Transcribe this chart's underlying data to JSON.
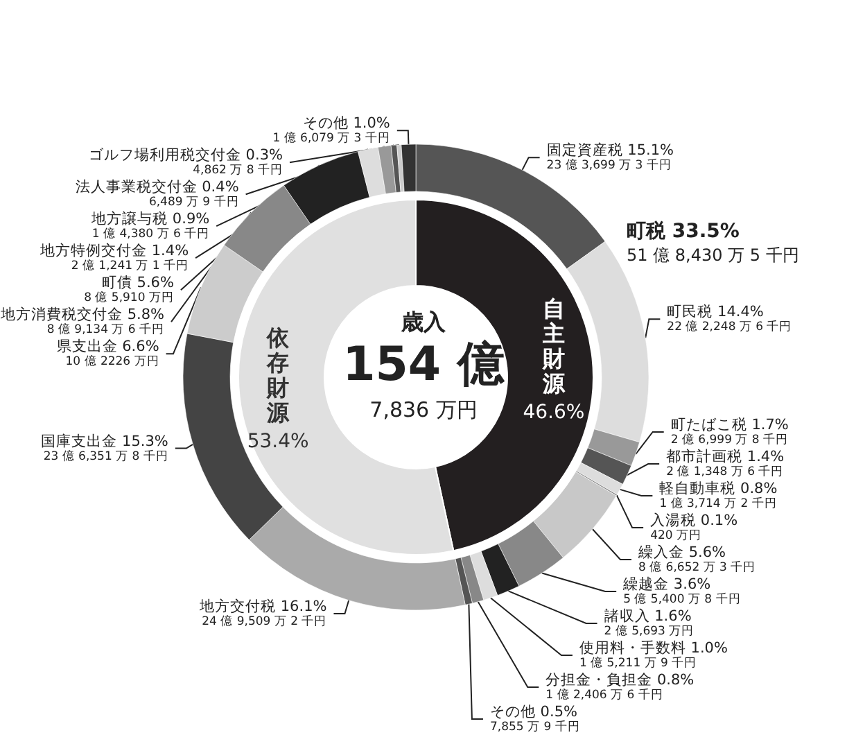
{
  "chart_data": [
    {
      "type": "donut",
      "title": "歳入",
      "annotations": [
        "154 億",
        "7,836 万円"
      ],
      "categories": [
        "自主財源",
        "依存財源"
      ],
      "values": [
        46.6,
        53.4
      ],
      "colors": [
        "#231f20",
        "#e0e0e0"
      ],
      "value_labels": [
        "46.6%",
        "53.4%"
      ]
    },
    {
      "type": "donut",
      "annotations": [
        "町税 33.5%",
        "51 億 8,430 万 5 千円"
      ],
      "categories": [
        "固定資産税",
        "町民税",
        "町たばこ税",
        "都市計画税",
        "軽自動車税",
        "入湯税",
        "繰入金",
        "繰越金",
        "諸収入",
        "使用料・手数料",
        "分担金・負担金",
        "その他",
        "地方交付税",
        "国庫支出金",
        "県支出金",
        "地方消費税交付金",
        "町債",
        "地方特例交付金",
        "地方譲与税",
        "法人事業税交付金",
        "ゴルフ場利用税交付金",
        "その他"
      ],
      "values": [
        15.1,
        14.4,
        1.7,
        1.4,
        0.8,
        0.1,
        5.6,
        3.6,
        1.6,
        1.0,
        0.8,
        0.5,
        16.1,
        15.3,
        6.6,
        5.8,
        5.6,
        1.4,
        0.9,
        0.4,
        0.3,
        1.0
      ],
      "colors": [
        "#555555",
        "#dddddd",
        "#999999",
        "#555555",
        "#dddddd",
        "#888888",
        "#c8c8c8",
        "#888888",
        "#222222",
        "#dddddd",
        "#888888",
        "#555555",
        "#aaaaaa",
        "#444444",
        "#cccccc",
        "#888888",
        "#222222",
        "#dddddd",
        "#999999",
        "#555555",
        "#cccccc",
        "#333333"
      ],
      "value_labels": [
        "15.1%\n23 億 3,699 万 3 千円",
        "14.4%\n22 億 2,248 万 6 千円",
        "1.7%\n2 億 6,999 万 8 千円",
        "1.4%\n2 億 1,348 万 6 千円",
        "0.8%\n1 億 3,714 万 2 千円",
        "0.1%\n420 万円",
        "5.6%\n8 億 6,652 万 3 千円",
        "3.6%\n5 億 5,400 万 8 千円",
        "1.6%\n2 億 5,693 万円",
        "1.0%\n1 億 5,211 万 9 千円",
        "0.8%\n1 億 2,406 万 6 千円",
        "0.5%\n7,855 万 9 千円",
        "16.1%\n24 億 9,509 万 2 千円",
        "15.3%\n23 億 6,351 万 8 千円",
        "6.6%\n10 億 2226 万円",
        "5.8%\n8 億 9,134 万 6 千円",
        "5.6%\n8 億 5,910 万円",
        "1.4%\n2 億 1,241 万 1 千円",
        "0.9%\n1 億 4,380 万 6 千円",
        "0.4%\n6,489 万 9 千円",
        "0.3%\n4,862 万 8 千円",
        "1.0%\n1 億 6,079 万 3 千円"
      ]
    }
  ]
}
